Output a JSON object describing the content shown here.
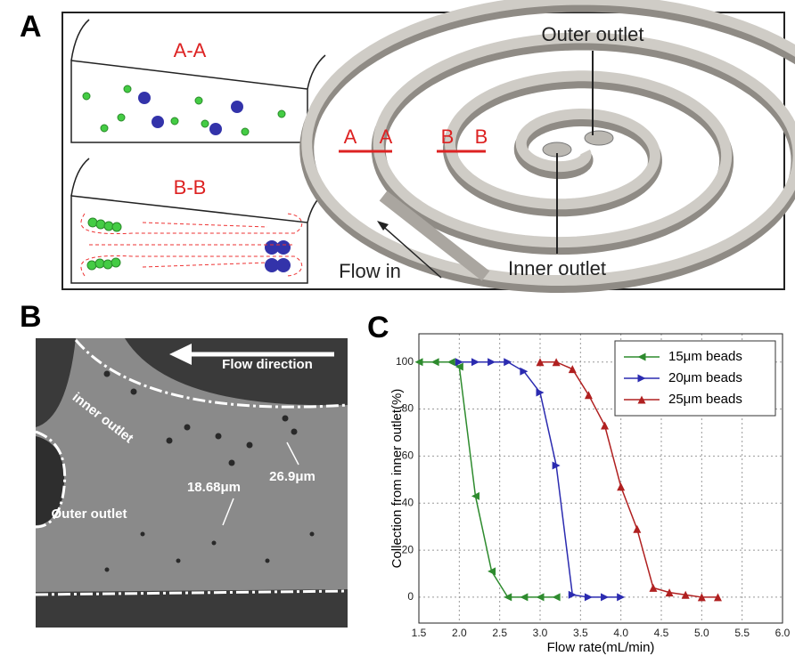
{
  "panels": {
    "a": {
      "label": "A",
      "section_aa": "A-A",
      "section_bb": "B-B",
      "cut_a": [
        "A",
        "A"
      ],
      "cut_b": [
        "B",
        "B"
      ],
      "outer_outlet": "Outer outlet",
      "inner_outlet": "Inner outlet",
      "flow_in": "Flow in"
    },
    "b": {
      "label": "B",
      "flow_direction": "Flow direction",
      "inner_outlet": "inner outlet",
      "outer_outlet": "Outer outlet",
      "size_small": "18.68μm",
      "size_large": "26.9μm"
    },
    "c": {
      "label": "C"
    }
  },
  "chart_data": {
    "type": "line",
    "x_label": "Flow rate(mL/min)",
    "y_label": "Collection from inner outlet(%)",
    "xlim": [
      1.5,
      6.0
    ],
    "ylim": [
      -11,
      112
    ],
    "xticks": [
      {
        "value": 1.5,
        "label": "1.5"
      },
      {
        "value": 2,
        "label": "2.0"
      },
      {
        "value": 2.5,
        "label": "2.5"
      },
      {
        "value": 3,
        "label": "3.0"
      },
      {
        "value": 3.5,
        "label": "3.5"
      },
      {
        "value": 4,
        "label": "4.0"
      },
      {
        "value": 4.5,
        "label": "4.5"
      },
      {
        "value": 5,
        "label": "5.0"
      },
      {
        "value": 5.5,
        "label": "5.5"
      },
      {
        "value": 6,
        "label": "6.0"
      }
    ],
    "yticks": [
      0,
      20,
      40,
      60,
      80,
      100
    ],
    "grid": true,
    "legend": "upper right",
    "series": [
      {
        "name": "15μm beads",
        "color": "#2e8b2e",
        "marker": "left",
        "x": [
          1.5,
          1.7,
          1.9,
          2.0,
          2.2,
          2.4,
          2.6,
          2.8,
          3.0,
          3.2
        ],
        "values": [
          100,
          100,
          100,
          98,
          43,
          11,
          0,
          0,
          0,
          0
        ]
      },
      {
        "name": "20μm beads",
        "color": "#2b2bb0",
        "marker": "right",
        "x": [
          2.0,
          2.2,
          2.4,
          2.6,
          2.8,
          3.0,
          3.2,
          3.4,
          3.6,
          3.8,
          4.0
        ],
        "values": [
          100,
          100,
          100,
          100,
          96,
          87,
          56,
          1,
          0,
          0,
          0
        ]
      },
      {
        "name": "25μm beads",
        "color": "#b02020",
        "marker": "up",
        "x": [
          3.0,
          3.2,
          3.4,
          3.6,
          3.8,
          4.0,
          4.2,
          4.4,
          4.6,
          4.8,
          5.0,
          5.2
        ],
        "values": [
          100,
          100,
          97,
          86,
          73,
          47,
          29,
          4,
          2,
          1,
          0,
          0
        ]
      }
    ]
  }
}
